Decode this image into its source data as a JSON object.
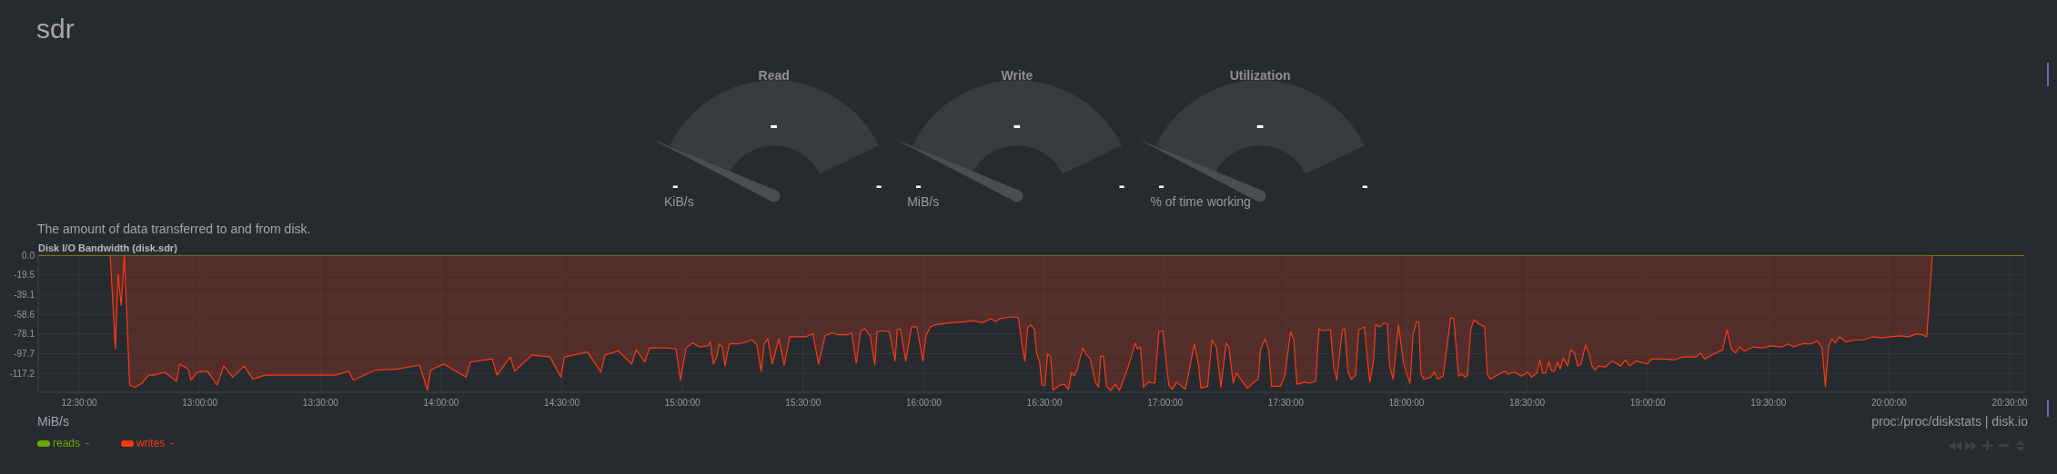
{
  "chart_data": [
    {
      "type": "other",
      "title": "sdr"
    },
    {
      "type": "other",
      "title": "Read",
      "annotations": [
        "-",
        "-",
        "-",
        "KiB/s"
      ]
    },
    {
      "type": "other",
      "title": "Write",
      "annotations": [
        "-",
        "-",
        "-",
        "MiB/s"
      ]
    },
    {
      "type": "other",
      "title": "Utilization",
      "annotations": [
        "-",
        "-",
        "-",
        "% of time working"
      ]
    },
    {
      "type": "area",
      "title": "Disk I/O Bandwidth (disk.sdr)",
      "subtitle": "The amount of data transferred to and from disk.",
      "annotations": [
        "MiB/s",
        "proc:/proc/diskstats | disk.io",
        "-",
        "-"
      ],
      "xlim": [
        12.33,
        20.56
      ],
      "xticks": [
        {
          "value": 12.5,
          "label": "12:30:00"
        },
        {
          "value": 13,
          "label": "13:00:00"
        },
        {
          "value": 13.5,
          "label": "13:30:00"
        },
        {
          "value": 14,
          "label": "14:00:00"
        },
        {
          "value": 14.5,
          "label": "14:30:00"
        },
        {
          "value": 15,
          "label": "15:00:00"
        },
        {
          "value": 15.5,
          "label": "15:30:00"
        },
        {
          "value": 16,
          "label": "16:00:00"
        },
        {
          "value": 16.5,
          "label": "16:30:00"
        },
        {
          "value": 17,
          "label": "17:00:00"
        },
        {
          "value": 17.5,
          "label": "17:30:00"
        },
        {
          "value": 18,
          "label": "18:00:00"
        },
        {
          "value": 18.5,
          "label": "18:30:00"
        },
        {
          "value": 19,
          "label": "19:00:00"
        },
        {
          "value": 19.5,
          "label": "19:30:00"
        },
        {
          "value": 20,
          "label": "20:00:00"
        },
        {
          "value": 20.5,
          "label": "20:30:00"
        }
      ],
      "ylim": [
        -136,
        0
      ],
      "yticks": [
        {
          "value": 0,
          "label": "0.0"
        },
        -19.5,
        -39.1,
        -58.6,
        -78.1,
        -97.7,
        -117.2
      ],
      "grid": true,
      "legend": "bottom left",
      "series": [
        {
          "name": "reads",
          "type": "line",
          "color": "#66aa00",
          "x": [
            12.33,
            20.56
          ],
          "values": [
            0,
            0
          ]
        },
        {
          "name": "writes",
          "color": "#fe3912",
          "x": [
            12.33,
            12.628,
            12.65,
            12.661,
            12.674,
            12.687,
            12.709,
            12.731,
            12.76,
            12.788,
            12.811,
            12.852,
            12.903,
            12.916,
            12.952,
            12.963,
            12.989,
            13.031,
            13.071,
            13.099,
            13.136,
            13.183,
            13.22,
            13.269,
            13.342,
            13.452,
            13.562,
            13.617,
            13.636,
            13.727,
            13.819,
            13.91,
            13.929,
            13.943,
            13.956,
            14.011,
            14.103,
            14.121,
            14.212,
            14.231,
            14.286,
            14.304,
            14.377,
            14.451,
            14.496,
            14.511,
            14.606,
            14.661,
            14.679,
            14.734,
            14.789,
            14.808,
            14.844,
            14.863,
            14.936,
            14.973,
            14.991,
            15.015,
            15.042,
            15.07,
            15.106,
            15.115,
            15.128,
            15.143,
            15.152,
            15.165,
            15.176,
            15.194,
            15.234,
            15.289,
            15.308,
            15.326,
            15.339,
            15.353,
            15.372,
            15.399,
            15.421,
            15.445,
            15.509,
            15.54,
            15.564,
            15.591,
            15.619,
            15.646,
            15.683,
            15.701,
            15.72,
            15.738,
            15.756,
            15.778,
            15.797,
            15.806,
            15.83,
            15.857,
            15.881,
            15.89,
            15.903,
            15.925,
            15.949,
            15.971,
            15.996,
            16.009,
            16.027,
            16.049,
            16.114,
            16.168,
            16.205,
            16.242,
            16.278,
            16.297,
            16.315,
            16.37,
            16.392,
            16.407,
            16.419,
            16.43,
            16.443,
            16.458,
            16.467,
            16.48,
            16.489,
            16.502,
            16.513,
            16.526,
            16.535,
            16.562,
            16.581,
            16.599,
            16.612,
            16.623,
            16.636,
            16.658,
            16.672,
            16.69,
            16.711,
            16.724,
            16.733,
            16.744,
            16.757,
            16.775,
            16.793,
            16.811,
            16.848,
            16.876,
            16.885,
            16.898,
            16.91,
            16.93,
            16.957,
            16.974,
            16.99,
            17.002,
            17.015,
            17.029,
            17.048,
            17.084,
            17.099,
            17.121,
            17.139,
            17.148,
            17.176,
            17.194,
            17.212,
            17.231,
            17.253,
            17.264,
            17.282,
            17.295,
            17.322,
            17.341,
            17.368,
            17.386,
            17.395,
            17.414,
            17.429,
            17.441,
            17.478,
            17.496,
            17.52,
            17.533,
            17.546,
            17.579,
            17.597,
            17.624,
            17.637,
            17.652,
            17.685,
            17.698,
            17.711,
            17.734,
            17.744,
            17.758,
            17.771,
            17.789,
            17.802,
            17.826,
            17.841,
            17.848,
            17.863,
            17.872,
            17.89,
            17.908,
            17.921,
            17.93,
            17.945,
            17.967,
            17.987,
            18,
            18.015,
            18.027,
            18.042,
            18.051,
            18.06,
            18.073,
            18.101,
            18.115,
            18.128,
            18.152,
            18.183,
            18.196,
            18.216,
            18.229,
            18.244,
            18.253,
            18.266,
            18.28,
            18.298,
            18.324,
            18.335,
            18.348,
            18.375,
            18.408,
            18.421,
            18.449,
            18.476,
            18.504,
            18.518,
            18.54,
            18.553,
            18.564,
            18.577,
            18.59,
            18.601,
            18.614,
            18.626,
            18.637,
            18.65,
            18.668,
            18.681,
            18.696,
            18.709,
            18.723,
            18.742,
            18.755,
            18.769,
            18.782,
            18.797,
            18.824,
            18.852,
            18.888,
            18.907,
            18.925,
            18.952,
            18.998,
            19.016,
            19.071,
            19.108,
            19.145,
            19.2,
            19.218,
            19.236,
            19.273,
            19.31,
            19.328,
            19.346,
            19.364,
            19.379,
            19.401,
            19.438,
            19.474,
            19.511,
            19.557,
            19.584,
            19.603,
            19.639,
            19.676,
            19.703,
            19.722,
            19.736,
            19.749,
            19.762,
            19.777,
            19.795,
            19.822,
            19.859,
            19.896,
            19.932,
            19.969,
            20.005,
            20.042,
            20.079,
            20.115,
            20.137,
            20.156,
            20.179,
            20.56
          ],
          "values": [
            0,
            0,
            -93,
            -19,
            -50,
            0,
            -129,
            -131,
            -127,
            -119,
            -119,
            -116,
            -125,
            -108,
            -113,
            -124,
            -116,
            -115,
            -129,
            -110,
            -121,
            -110,
            -123,
            -119,
            -119,
            -119,
            -119,
            -115,
            -124,
            -114,
            -113,
            -109,
            -123,
            -134,
            -114,
            -108,
            -121,
            -106,
            -103,
            -119,
            -101,
            -115,
            -99,
            -101,
            -121,
            -101,
            -96,
            -116,
            -99,
            -95,
            -108,
            -94,
            -106,
            -92,
            -92,
            -93,
            -124,
            -92,
            -87,
            -91,
            -90,
            -86,
            -108,
            -100,
            -88,
            -91,
            -110,
            -88,
            -88,
            -84,
            -89,
            -115,
            -88,
            -83,
            -108,
            -83,
            -109,
            -81,
            -81,
            -78,
            -108,
            -80,
            -77,
            -79,
            -79,
            -77,
            -107,
            -75,
            -73,
            -80,
            -109,
            -76,
            -75,
            -76,
            -105,
            -74,
            -73,
            -105,
            -71,
            -71,
            -105,
            -80,
            -71,
            -69,
            -67,
            -66,
            -65,
            -67,
            -63,
            -66,
            -63,
            -61,
            -62,
            -89,
            -105,
            -72,
            -69,
            -74,
            -97,
            -106,
            -129,
            -129,
            -98,
            -101,
            -134,
            -129,
            -128,
            -133,
            -116,
            -120,
            -113,
            -92,
            -98,
            -103,
            -126,
            -131,
            -100,
            -100,
            -130,
            -134,
            -128,
            -134,
            -110,
            -87,
            -93,
            -91,
            -131,
            -126,
            -127,
            -76,
            -75,
            -100,
            -129,
            -133,
            -126,
            -133,
            -115,
            -88,
            -110,
            -132,
            -130,
            -84,
            -91,
            -131,
            -87,
            -91,
            -127,
            -117,
            -126,
            -132,
            -126,
            -123,
            -94,
            -83,
            -94,
            -130,
            -130,
            -119,
            -76,
            -84,
            -128,
            -126,
            -127,
            -125,
            -73,
            -75,
            -74,
            -110,
            -124,
            -74,
            -73,
            -116,
            -123,
            -119,
            -74,
            -71,
            -110,
            -126,
            -106,
            -69,
            -71,
            -67,
            -69,
            -110,
            -123,
            -69,
            -106,
            -117,
            -127,
            -79,
            -66,
            -66,
            -118,
            -123,
            -121,
            -116,
            -123,
            -120,
            -62,
            -63,
            -120,
            -118,
            -121,
            -119,
            -74,
            -64,
            -68,
            -71,
            -118,
            -123,
            -119,
            -115,
            -118,
            -116,
            -120,
            -116,
            -121,
            -117,
            -104,
            -117,
            -117,
            -106,
            -115,
            -115,
            -106,
            -113,
            -102,
            -110,
            -94,
            -97,
            -110,
            -108,
            -89,
            -97,
            -110,
            -114,
            -110,
            -111,
            -105,
            -110,
            -104,
            -110,
            -105,
            -108,
            -103,
            -103,
            -104,
            -101,
            -101,
            -97,
            -103,
            -98,
            -94,
            -74,
            -93,
            -97,
            -91,
            -95,
            -91,
            -92,
            -90,
            -91,
            -88,
            -91,
            -88,
            -88,
            -85,
            -92,
            -130,
            -91,
            -83,
            -87,
            -81,
            -86,
            -84,
            -84,
            -81,
            -82,
            -81,
            -80,
            -81,
            -78,
            -79,
            -81,
            0,
            0
          ]
        }
      ]
    }
  ]
}
